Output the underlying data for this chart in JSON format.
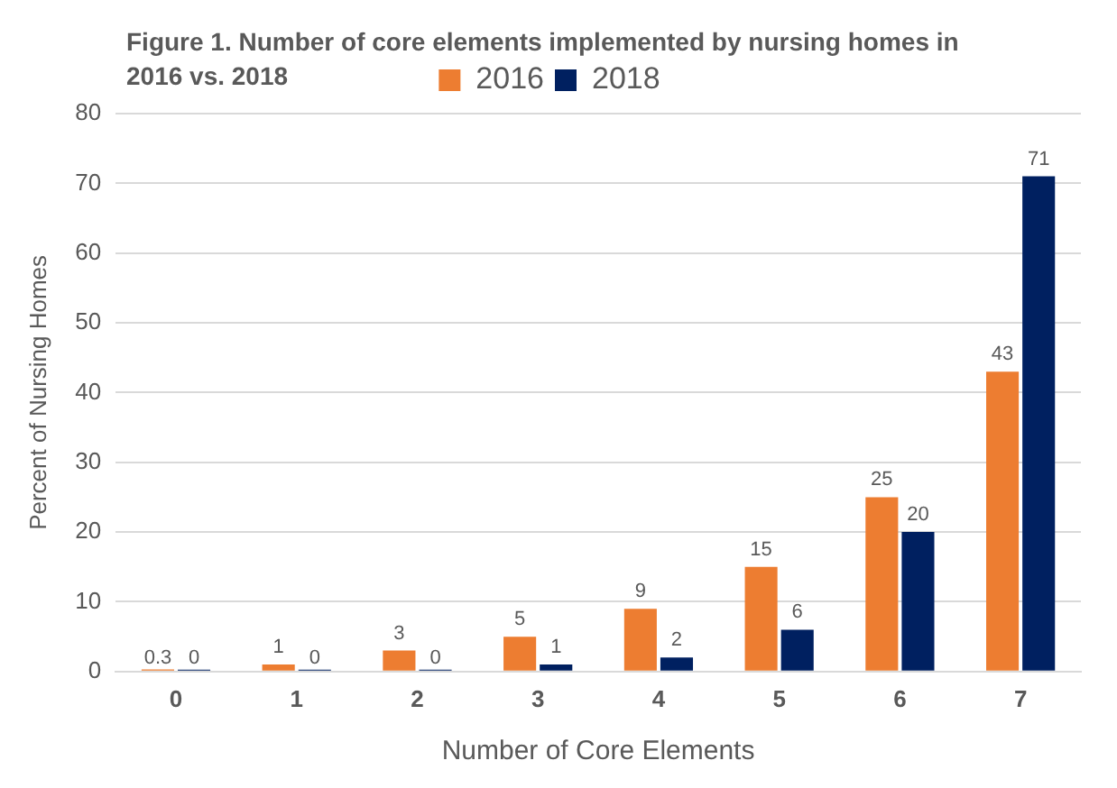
{
  "chart_data": {
    "type": "bar",
    "title": "Figure 1. Number of core elements implemented by nursing homes in 2016 vs. 2018",
    "categories": [
      "0",
      "1",
      "2",
      "3",
      "4",
      "5",
      "6",
      "7"
    ],
    "series": [
      {
        "name": "2016",
        "color": "#ed7d31",
        "values": [
          0.3,
          1,
          3,
          5,
          9,
          15,
          25,
          43
        ]
      },
      {
        "name": "2018",
        "color": "#002060",
        "values": [
          0,
          0,
          0,
          1,
          2,
          6,
          20,
          71
        ]
      }
    ],
    "xlabel": "Number of Core Elements",
    "ylabel": "Percent of Nursing Homes",
    "ylim": [
      0,
      80
    ],
    "yticks": [
      0,
      10,
      20,
      30,
      40,
      50,
      60,
      70,
      80
    ],
    "grid": "y",
    "legend": "top",
    "data_labels": true
  }
}
